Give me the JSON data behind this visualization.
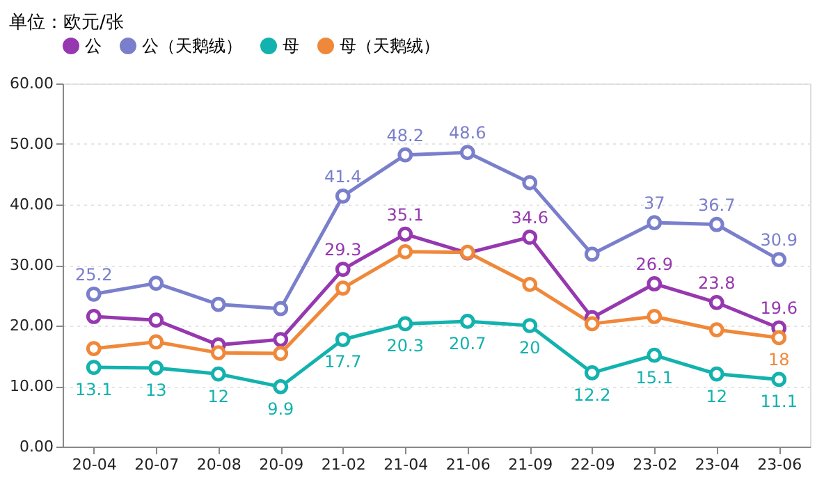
{
  "chart_data": {
    "type": "line",
    "ylabel": "单位：欧元/张",
    "categories": [
      "20-04",
      "20-07",
      "20-08",
      "20-09",
      "21-02",
      "21-04",
      "21-06",
      "21-09",
      "22-09",
      "23-02",
      "23-04",
      "23-06"
    ],
    "series": [
      {
        "name": "公",
        "color": "#9638b0",
        "values": [
          21.5,
          20.9,
          16.8,
          17.7,
          29.3,
          35.1,
          32.0,
          34.6,
          21.3,
          26.9,
          23.8,
          19.6
        ],
        "value_labels": [
          null,
          null,
          null,
          null,
          "29.3",
          "35.1",
          null,
          "34.6",
          null,
          "26.9",
          "23.8",
          "19.6"
        ]
      },
      {
        "name": "公（天鹅绒）",
        "color": "#7a7fcc",
        "values": [
          25.2,
          27.0,
          23.5,
          22.8,
          41.4,
          48.2,
          48.6,
          43.6,
          31.8,
          37,
          36.7,
          30.9
        ],
        "value_labels": [
          "25.2",
          null,
          null,
          null,
          "41.4",
          "48.2",
          "48.6",
          null,
          null,
          "37",
          "36.7",
          "30.9"
        ]
      },
      {
        "name": "母",
        "color": "#13b2ae",
        "values": [
          13.1,
          13,
          12,
          9.9,
          17.7,
          20.3,
          20.7,
          20,
          12.2,
          15.1,
          12,
          11.1
        ],
        "value_labels": [
          "13.1",
          "13",
          "12",
          "9.9",
          "17.7",
          "20.3",
          "20.7",
          "20",
          "12.2",
          "15.1",
          "12",
          "11.1"
        ]
      },
      {
        "name": "母（天鹅绒）",
        "color": "#f0883a",
        "values": [
          16.2,
          17.3,
          15.5,
          15.4,
          26.2,
          32.2,
          32.1,
          26.8,
          20.3,
          21.5,
          19.3,
          18.0
        ],
        "value_labels": [
          null,
          null,
          null,
          null,
          null,
          null,
          null,
          null,
          null,
          null,
          null,
          "18"
        ]
      }
    ],
    "ylim": [
      0,
      60
    ],
    "yticks": [
      {
        "value": 0,
        "label": "0.00"
      },
      {
        "value": 10,
        "label": "10.00"
      },
      {
        "value": 20,
        "label": "20.00"
      },
      {
        "value": 30,
        "label": "30.00"
      },
      {
        "value": 40,
        "label": "40.00"
      },
      {
        "value": 50,
        "label": "50.00"
      },
      {
        "value": 60,
        "label": "60.00"
      }
    ],
    "grid": "y",
    "legend": "top",
    "marker": "circle",
    "line_style": "solid"
  }
}
